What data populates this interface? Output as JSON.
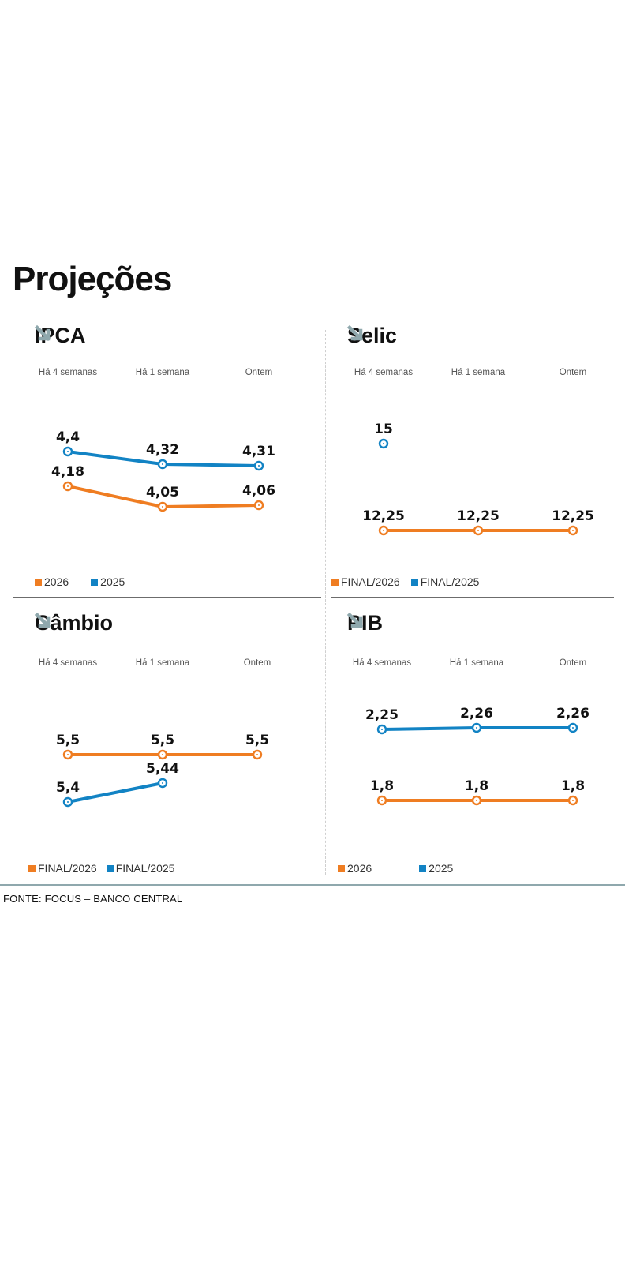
{
  "page_title": "Projeções",
  "source": "FONTE: FOCUS – BANCO CENTRAL",
  "colors": {
    "orange": "#ef7d22",
    "blue": "#1283c4",
    "arrow": "#8fa8ad"
  },
  "icons": {
    "trend": "down-right-arrow-icon"
  },
  "chart_data": [
    {
      "type": "line",
      "title": "IPCA",
      "categories": [
        "Há 4 semanas",
        "Há 1 semana",
        "Ontem"
      ],
      "series": [
        {
          "name": "2025",
          "color": "#1283c4",
          "values": [
            4.4,
            4.32,
            4.31
          ],
          "labels": [
            "4,4",
            "4,32",
            "4,31"
          ]
        },
        {
          "name": "2026",
          "color": "#ef7d22",
          "values": [
            4.18,
            4.05,
            4.06
          ],
          "labels": [
            "4,18",
            "4,05",
            "4,06"
          ]
        }
      ],
      "legend": [
        {
          "name": "2026",
          "color": "#ef7d22"
        },
        {
          "name": "2025",
          "color": "#1283c4"
        }
      ],
      "ylim": [
        3.8,
        4.6
      ]
    },
    {
      "type": "line",
      "title": "Selic",
      "categories": [
        "Há 4 semanas",
        "Há 1 semana",
        "Ontem"
      ],
      "series": [
        {
          "name": "FINAL/2025",
          "color": "#1283c4",
          "values": [
            15,
            null,
            null
          ],
          "labels": [
            "15",
            "",
            ""
          ]
        },
        {
          "name": "FINAL/2026",
          "color": "#ef7d22",
          "values": [
            12.25,
            12.25,
            12.25
          ],
          "labels": [
            "12,25",
            "12,25",
            "12,25"
          ]
        }
      ],
      "legend": [
        {
          "name": "FINAL/2026",
          "color": "#ef7d22"
        },
        {
          "name": "FINAL/2025",
          "color": "#1283c4"
        }
      ],
      "ylim": [
        11,
        16
      ]
    },
    {
      "type": "line",
      "title": "Câmbio",
      "categories": [
        "Há 4 semanas",
        "Há 1 semana",
        "Ontem"
      ],
      "series": [
        {
          "name": "FINAL/2025",
          "color": "#1283c4",
          "values": [
            5.4,
            5.44,
            null
          ],
          "labels": [
            "5,4",
            "5,44",
            ""
          ]
        },
        {
          "name": "FINAL/2026",
          "color": "#ef7d22",
          "values": [
            5.5,
            5.5,
            5.5
          ],
          "labels": [
            "5,5",
            "5,5",
            "5,5"
          ]
        }
      ],
      "legend": [
        {
          "name": "FINAL/2026",
          "color": "#ef7d22"
        },
        {
          "name": "FINAL/2025",
          "color": "#1283c4"
        }
      ],
      "ylim": [
        5.3,
        5.6
      ]
    },
    {
      "type": "line",
      "title": "PIB",
      "categories": [
        "Há 4 semanas",
        "Há 1 semana",
        "Ontem"
      ],
      "series": [
        {
          "name": "2025",
          "color": "#1283c4",
          "values": [
            2.25,
            2.26,
            2.26
          ],
          "labels": [
            "2,25",
            "2,26",
            "2,26"
          ]
        },
        {
          "name": "2026",
          "color": "#ef7d22",
          "values": [
            1.8,
            1.8,
            1.8
          ],
          "labels": [
            "1,8",
            "1,8",
            "1,8"
          ]
        }
      ],
      "legend": [
        {
          "name": "2026",
          "color": "#ef7d22"
        },
        {
          "name": "2025",
          "color": "#1283c4"
        }
      ],
      "ylim": [
        1.5,
        2.5
      ]
    }
  ]
}
